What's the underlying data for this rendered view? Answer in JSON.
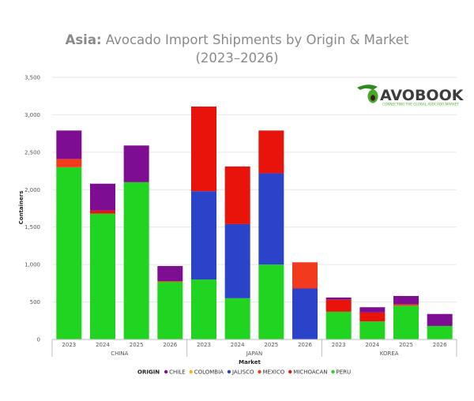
{
  "chart_data": {
    "type": "bar",
    "stacked": true,
    "title_bold": "Asia:",
    "title_rest": " Avocado Import Shipments by Origin & Market",
    "title_line2": "(2023–2026)",
    "xlabel": "Market",
    "ylabel": "Containers",
    "ylim": [
      0,
      3500
    ],
    "yticks": [
      "0",
      "500",
      "1,000",
      "1,500",
      "2,000",
      "2,500",
      "3,000",
      "3,500"
    ],
    "ytick_values": [
      0,
      500,
      1000,
      1500,
      2000,
      2500,
      3000,
      3500
    ],
    "grid": true,
    "legend_position": "bottom",
    "legend_title": "ORIGIN",
    "groups": [
      "CHINA",
      "JAPAN",
      "KOREA"
    ],
    "categories": [
      "2023",
      "2024",
      "2025",
      "2026",
      "2023",
      "2024",
      "2025",
      "2026",
      "2023",
      "2024",
      "2025",
      "2026"
    ],
    "series": [
      {
        "name": "PERU",
        "color": "#21d421",
        "values": [
          2300,
          1680,
          2100,
          770,
          800,
          550,
          1000,
          0,
          370,
          240,
          450,
          180
        ]
      },
      {
        "name": "JALISCO",
        "color": "#2b43c9",
        "values": [
          0,
          0,
          0,
          0,
          1180,
          990,
          1220,
          680,
          0,
          0,
          0,
          0
        ]
      },
      {
        "name": "MICHOACAN",
        "color": "#e8140c",
        "values": [
          0,
          40,
          0,
          0,
          1130,
          770,
          570,
          0,
          160,
          120,
          0,
          0
        ]
      },
      {
        "name": "MEXICO",
        "color": "#f23a1e",
        "values": [
          110,
          0,
          0,
          10,
          0,
          0,
          0,
          350,
          0,
          0,
          20,
          0
        ]
      },
      {
        "name": "COLOMBIA",
        "color": "#f5b800",
        "values": [
          0,
          0,
          0,
          0,
          0,
          0,
          0,
          0,
          0,
          0,
          0,
          0
        ]
      },
      {
        "name": "CHILE",
        "color": "#7d0e91",
        "values": [
          380,
          360,
          490,
          200,
          0,
          0,
          0,
          0,
          30,
          70,
          110,
          160
        ]
      }
    ],
    "legend_order": [
      "CHILE",
      "COLOMBIA",
      "JALISCO",
      "MEXICO",
      "MICHOACAN",
      "PERU"
    ]
  },
  "logo": {
    "text": "AVOBOOK",
    "tagline": "CONNECTING THE GLOBAL AVOCADO MARKET"
  }
}
